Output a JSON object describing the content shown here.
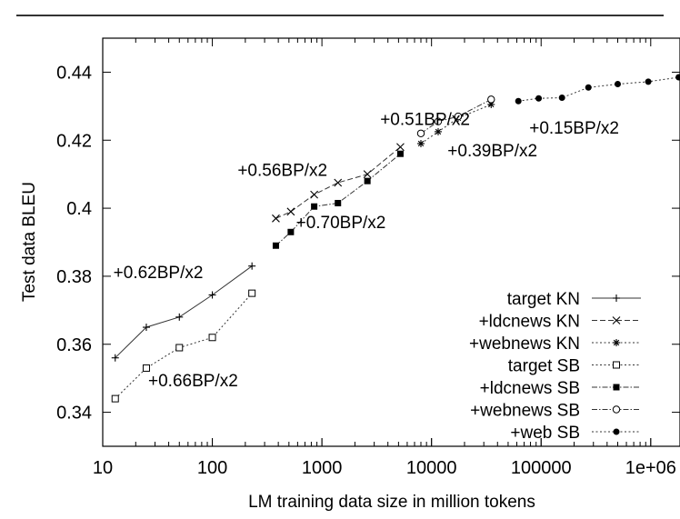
{
  "chart_data": {
    "type": "line",
    "xscale": "log",
    "xlabel": "LM training data size in million tokens",
    "ylabel": "Test data BLEU",
    "xlim": [
      10,
      1850000
    ],
    "ylim": [
      0.33,
      0.45
    ],
    "xticks": [
      {
        "value": 10,
        "label": "10"
      },
      {
        "value": 100,
        "label": "100"
      },
      {
        "value": 1000,
        "label": "1000"
      },
      {
        "value": 10000,
        "label": "10000"
      },
      {
        "value": 100000,
        "label": "100000"
      },
      {
        "value": 1000000,
        "label": "1e+06"
      }
    ],
    "yticks": [
      {
        "value": 0.34,
        "label": "0.34"
      },
      {
        "value": 0.36,
        "label": "0.36"
      },
      {
        "value": 0.38,
        "label": "0.38"
      },
      {
        "value": 0.4,
        "label": "0.4"
      },
      {
        "value": 0.42,
        "label": "0.42"
      },
      {
        "value": 0.44,
        "label": "0.44"
      }
    ],
    "grid": false,
    "legend_position": "bottom-right",
    "series": [
      {
        "name": "target KN",
        "marker": "plus",
        "dash": "solid",
        "x": [
          13,
          25,
          50,
          100,
          230
        ],
        "y": [
          0.356,
          0.365,
          0.368,
          0.3745,
          0.383
        ]
      },
      {
        "name": "+ldcnews KN",
        "marker": "x",
        "dash": "dashed",
        "x": [
          380,
          520,
          850,
          1400,
          2600,
          5200
        ],
        "y": [
          0.397,
          0.399,
          0.404,
          0.4075,
          0.41,
          0.418
        ]
      },
      {
        "name": "+webnews KN",
        "marker": "star",
        "dash": "dotted",
        "x": [
          8000,
          11500,
          17500,
          35000
        ],
        "y": [
          0.419,
          0.4225,
          0.4265,
          0.4305
        ]
      },
      {
        "name": "target SB",
        "marker": "open-square",
        "dash": "dotted",
        "x": [
          13,
          25,
          50,
          100,
          230
        ],
        "y": [
          0.344,
          0.353,
          0.359,
          0.362,
          0.375
        ]
      },
      {
        "name": "+ldcnews SB",
        "marker": "filled-square",
        "dash": "dashdot",
        "x": [
          380,
          520,
          850,
          1400,
          2600,
          5200
        ],
        "y": [
          0.389,
          0.393,
          0.4005,
          0.4015,
          0.408,
          0.416
        ]
      },
      {
        "name": "+webnews SB",
        "marker": "open-circle",
        "dash": "dashdot",
        "x": [
          8000,
          11500,
          17500,
          35000
        ],
        "y": [
          0.422,
          0.4255,
          0.427,
          0.432
        ]
      },
      {
        "name": "+web SB",
        "marker": "filled-circle",
        "dash": "dotted",
        "x": [
          62000,
          95000,
          155000,
          270000,
          500000,
          950000,
          1800000
        ],
        "y": [
          0.4315,
          0.4323,
          0.4325,
          0.4355,
          0.4365,
          0.4372,
          0.4385
        ]
      }
    ],
    "annotations": [
      {
        "text": "+0.62BP/x2",
        "x": 12.5,
        "y": 0.3795
      },
      {
        "text": "+0.66BP/x2",
        "x": 26,
        "y": 0.3477
      },
      {
        "text": "+0.56BP/x2",
        "x": 170,
        "y": 0.4095
      },
      {
        "text": "+0.70BP/x2",
        "x": 580,
        "y": 0.3941
      },
      {
        "text": "+0.51BP/x2",
        "x": 3400,
        "y": 0.4245
      },
      {
        "text": "+0.39BP/x2",
        "x": 14000,
        "y": 0.4152
      },
      {
        "text": "+0.15BP/x2",
        "x": 78000,
        "y": 0.4219
      }
    ]
  }
}
